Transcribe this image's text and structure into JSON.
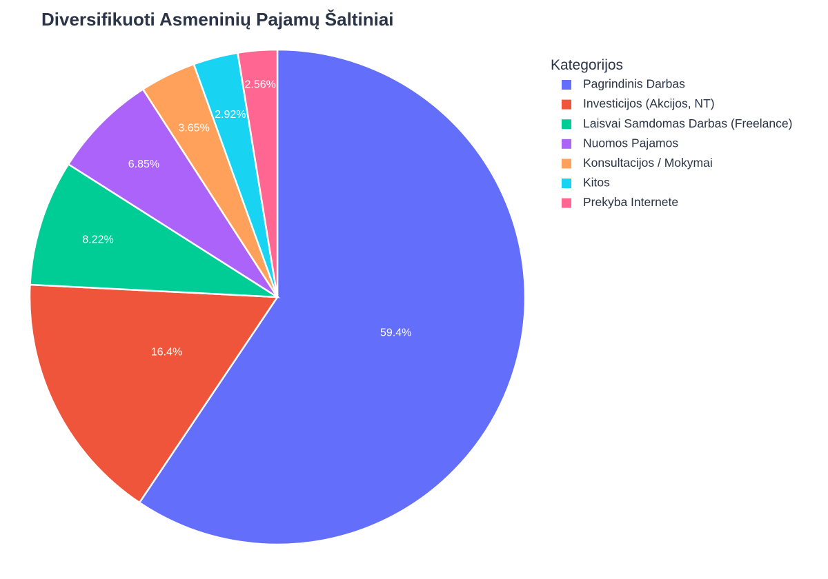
{
  "chart_data": {
    "type": "pie",
    "title": "Diversifikuoti Asmeninių Pajamų Šaltiniai",
    "legend_title": "Kategorijos",
    "legend_position": "top-right",
    "direction": "clockwise",
    "start_angle": "12 o'clock",
    "slices": [
      {
        "label": "Pagrindinis Darbas",
        "value": 59.4,
        "display": "59.4%",
        "color": "#636EFA"
      },
      {
        "label": "Investicijos (Akcijos, NT)",
        "value": 16.4,
        "display": "16.4%",
        "color": "#EF553B"
      },
      {
        "label": "Laisvai Samdomas Darbas (Freelance)",
        "value": 8.22,
        "display": "8.22%",
        "color": "#00CC96"
      },
      {
        "label": "Nuomos Pajamos",
        "value": 6.85,
        "display": "6.85%",
        "color": "#AB63FA"
      },
      {
        "label": "Konsultacijos / Mokymai",
        "value": 3.65,
        "display": "3.65%",
        "color": "#FFA15A"
      },
      {
        "label": "Kitos",
        "value": 2.92,
        "display": "2.92%",
        "color": "#19D3F3"
      },
      {
        "label": "Prekyba Internete",
        "value": 2.56,
        "display": "2.56%",
        "color": "#FF6692"
      }
    ]
  }
}
